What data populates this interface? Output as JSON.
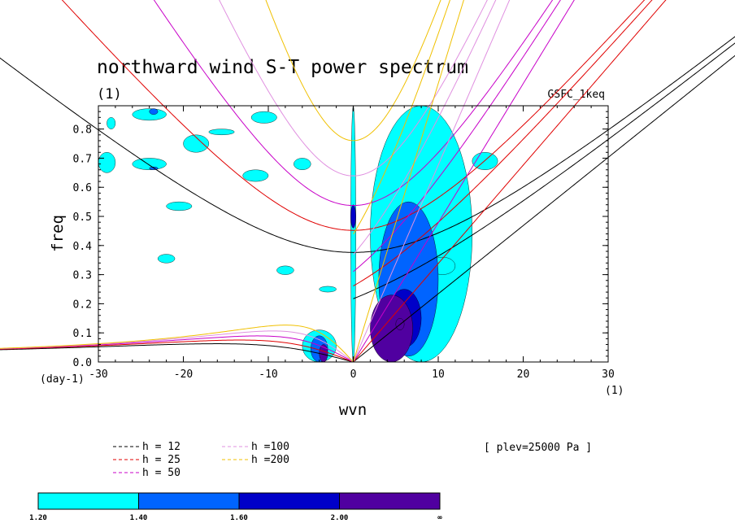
{
  "chart_data": {
    "type": "heatmap",
    "title": "northward wind S-T power spectrum",
    "subtitle_left": "(1)",
    "subtitle_right": "GSFC_1keq",
    "xlabel": "wvn",
    "ylabel": "freq",
    "x_unit_label": "(1)",
    "y_unit_label": "(day-1)",
    "xlim": [
      -30,
      30
    ],
    "ylim": [
      0,
      0.88
    ],
    "xticks": [
      -30,
      -20,
      -10,
      0,
      10,
      20,
      30
    ],
    "xtick_labels": [
      "-30",
      "-20",
      "-10",
      "0",
      "10",
      "20",
      "30"
    ],
    "yticks": [
      0,
      0.1,
      0.2,
      0.3,
      0.4,
      0.5,
      0.6,
      0.7,
      0.8
    ],
    "ytick_labels": [
      "0.0",
      "0.1",
      "0.2",
      "0.3",
      "0.4",
      "0.5",
      "0.6",
      "0.7",
      "0.8"
    ],
    "annotation": "[ plev=25000 Pa ]",
    "dispersion_curves": [
      {
        "label": "h = 12",
        "h": 12,
        "color": "#000000"
      },
      {
        "label": "h = 25",
        "h": 25,
        "color": "#e00000"
      },
      {
        "label": "h = 50",
        "h": 50,
        "color": "#c800c8"
      },
      {
        "label": "h =100",
        "h": 100,
        "color": "#e090e0"
      },
      {
        "label": "h =200",
        "h": 200,
        "color": "#f0c000"
      }
    ],
    "colorbar": {
      "tick_labels": [
        "1.20",
        "1.40",
        "1.60",
        "2.00",
        "∞"
      ],
      "colors": [
        "#00ffff",
        "#0064ff",
        "#0000c8",
        "#5000a0"
      ]
    },
    "contour_regions": [
      {
        "level": 1,
        "wvn": [
          -29,
          -28
        ],
        "freq": [
          0.8,
          0.84
        ]
      },
      {
        "level": 1,
        "wvn": [
          -26,
          -22
        ],
        "freq": [
          0.83,
          0.87
        ]
      },
      {
        "level": 2,
        "wvn": [
          -24,
          -23
        ],
        "freq": [
          0.85,
          0.87
        ]
      },
      {
        "level": 1,
        "wvn": [
          -30,
          -28
        ],
        "freq": [
          0.65,
          0.72
        ]
      },
      {
        "level": 1,
        "wvn": [
          -26,
          -22
        ],
        "freq": [
          0.66,
          0.7
        ]
      },
      {
        "level": 2,
        "wvn": [
          -24,
          -23
        ],
        "freq": [
          0.66,
          0.67
        ]
      },
      {
        "level": 1,
        "wvn": [
          -20,
          -17
        ],
        "freq": [
          0.72,
          0.78
        ]
      },
      {
        "level": 1,
        "wvn": [
          -22,
          -19
        ],
        "freq": [
          0.52,
          0.55
        ]
      },
      {
        "level": 1,
        "wvn": [
          -23,
          -21
        ],
        "freq": [
          0.34,
          0.37
        ]
      },
      {
        "level": 1,
        "wvn": [
          -12,
          -9
        ],
        "freq": [
          0.82,
          0.86
        ]
      },
      {
        "level": 1,
        "wvn": [
          -13,
          -10
        ],
        "freq": [
          0.62,
          0.66
        ]
      },
      {
        "level": 1,
        "wvn": [
          -7,
          -5
        ],
        "freq": [
          0.66,
          0.7
        ]
      },
      {
        "level": 1,
        "wvn": [
          -17,
          -14
        ],
        "freq": [
          0.78,
          0.8
        ]
      },
      {
        "level": 1,
        "wvn": [
          -9,
          -7
        ],
        "freq": [
          0.3,
          0.33
        ]
      },
      {
        "level": 1,
        "wvn": [
          -4,
          -2
        ],
        "freq": [
          0.24,
          0.26
        ]
      },
      {
        "level": 1,
        "wvn": [
          -0.3,
          0.3
        ],
        "freq": [
          0.0,
          0.88
        ]
      },
      {
        "level": 3,
        "wvn": [
          -0.3,
          0.3
        ],
        "freq": [
          0.46,
          0.54
        ]
      },
      {
        "level": 1,
        "wvn": [
          -6,
          -2
        ],
        "freq": [
          0.0,
          0.11
        ]
      },
      {
        "level": 2,
        "wvn": [
          -5,
          -3
        ],
        "freq": [
          0.0,
          0.09
        ]
      },
      {
        "level": 4,
        "wvn": [
          -4,
          -3
        ],
        "freq": [
          0.0,
          0.06
        ]
      },
      {
        "level": 1,
        "wvn": [
          2,
          14
        ],
        "freq": [
          0.0,
          0.88
        ]
      },
      {
        "level": 2,
        "wvn": [
          3,
          10
        ],
        "freq": [
          0.02,
          0.55
        ]
      },
      {
        "level": 3,
        "wvn": [
          4,
          8
        ],
        "freq": [
          0.05,
          0.25
        ]
      },
      {
        "level": 4,
        "wvn": [
          2,
          7
        ],
        "freq": [
          0.0,
          0.23
        ]
      },
      {
        "level": 4,
        "wvn": [
          5,
          6
        ],
        "freq": [
          0.11,
          0.15
        ]
      },
      {
        "level": 1,
        "wvn": [
          14,
          17
        ],
        "freq": [
          0.66,
          0.72
        ]
      },
      {
        "level": 1,
        "wvn": [
          9,
          12
        ],
        "freq": [
          0.3,
          0.36
        ]
      }
    ]
  }
}
